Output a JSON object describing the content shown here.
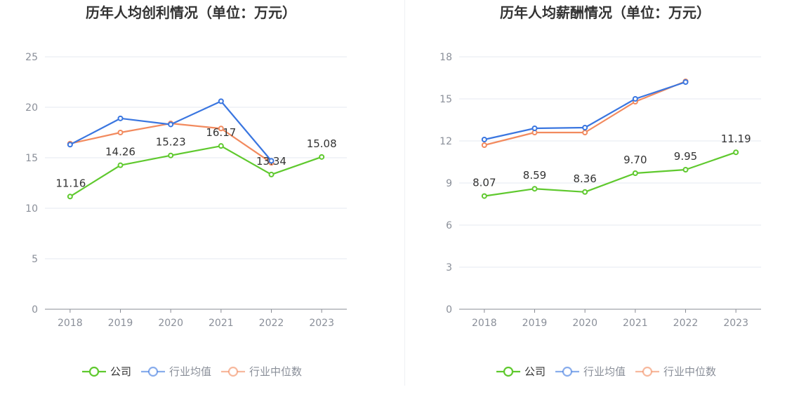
{
  "legend_labels": [
    "公司",
    "行业均值",
    "行业中位数"
  ],
  "colors": {
    "company": "#5fc92e",
    "avg": "#3a76e0",
    "median": "#f28a5e",
    "grid": "#e6e9f2",
    "axis": "#888c94"
  },
  "chart_data": [
    {
      "type": "line",
      "title": "历年人均创利情况（单位：万元）",
      "categories": [
        "2018",
        "2019",
        "2020",
        "2021",
        "2022",
        "2023"
      ],
      "ylim": [
        0,
        25
      ],
      "yticks": [
        0,
        5,
        10,
        15,
        20,
        25
      ],
      "grid": true,
      "legend_position": "bottom",
      "series": [
        {
          "name": "公司",
          "color": "#5fc92e",
          "values": [
            11.16,
            14.26,
            15.23,
            16.17,
            13.34,
            15.08
          ],
          "labels": [
            "11.16",
            "14.26",
            "15.23",
            "16.17",
            "13.34",
            "15.08"
          ]
        },
        {
          "name": "行业均值",
          "color": "#3a76e0",
          "values": [
            16.3,
            18.9,
            18.3,
            20.6,
            14.7,
            null
          ]
        },
        {
          "name": "行业中位数",
          "color": "#f28a5e",
          "values": [
            16.4,
            17.5,
            18.4,
            17.9,
            14.5,
            null
          ]
        }
      ]
    },
    {
      "type": "line",
      "title": "历年人均薪酬情况（单位：万元）",
      "categories": [
        "2018",
        "2019",
        "2020",
        "2021",
        "2022",
        "2023"
      ],
      "ylim": [
        0,
        18
      ],
      "yticks": [
        0,
        3,
        6,
        9,
        12,
        15,
        18
      ],
      "grid": true,
      "legend_position": "bottom",
      "series": [
        {
          "name": "公司",
          "color": "#5fc92e",
          "values": [
            8.07,
            8.59,
            8.36,
            9.7,
            9.95,
            11.19
          ],
          "labels": [
            "8.07",
            "8.59",
            "8.36",
            "9.70",
            "9.95",
            "11.19"
          ]
        },
        {
          "name": "行业均值",
          "color": "#3a76e0",
          "values": [
            12.1,
            12.9,
            12.95,
            15.0,
            16.2,
            null
          ]
        },
        {
          "name": "行业中位数",
          "color": "#f28a5e",
          "values": [
            11.7,
            12.6,
            12.6,
            14.8,
            16.25,
            null
          ]
        }
      ]
    }
  ]
}
